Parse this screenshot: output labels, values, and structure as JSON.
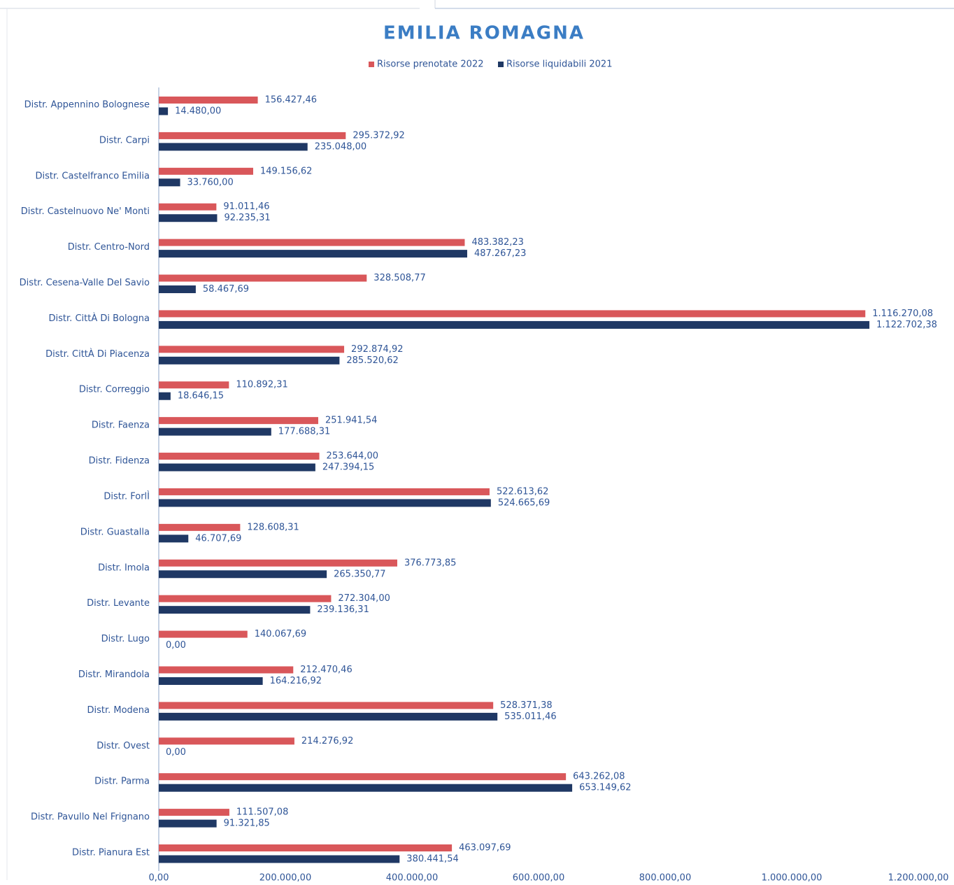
{
  "chart_data": {
    "type": "hbar",
    "title": "EMILIA ROMAGNA",
    "categories": [
      "Distr. Appennino Bolognese",
      "Distr. Carpi",
      "Distr. Castelfranco Emilia",
      "Distr. Castelnuovo Ne' Monti",
      "Distr. Centro-Nord",
      "Distr. Cesena-Valle Del Savio",
      "Distr. CittÀ Di Bologna",
      "Distr. CittÀ Di Piacenza",
      "Distr. Correggio",
      "Distr. Faenza",
      "Distr. Fidenza",
      "Distr. ForlÌ",
      "Distr. Guastalla",
      "Distr. Imola",
      "Distr. Levante",
      "Distr. Lugo",
      "Distr. Mirandola",
      "Distr. Modena",
      "Distr. Ovest",
      "Distr. Parma",
      "Distr. Pavullo Nel Frignano",
      "Distr. Pianura Est"
    ],
    "series": [
      {
        "name": "Risorse prenotate 2022",
        "color": "#d9575a",
        "values": [
          156427.46,
          295372.92,
          149156.62,
          91011.46,
          483382.23,
          328508.77,
          1116270.08,
          292874.92,
          110892.31,
          251941.54,
          253644.0,
          522613.62,
          128608.31,
          376773.85,
          272304.0,
          140067.69,
          212470.46,
          528371.38,
          214276.92,
          643262.08,
          111507.08,
          463097.69
        ],
        "value_labels": [
          "156.427,46",
          "295.372,92",
          "149.156,62",
          "91.011,46",
          "483.382,23",
          "328.508,77",
          "1.116.270,08",
          "292.874,92",
          "110.892,31",
          "251.941,54",
          "253.644,00",
          "522.613,62",
          "128.608,31",
          "376.773,85",
          "272.304,00",
          "140.067,69",
          "212.470,46",
          "528.371,38",
          "214.276,92",
          "643.262,08",
          "111.507,08",
          "463.097,69"
        ]
      },
      {
        "name": "Risorse liquidabili 2021",
        "color": "#1f3864",
        "values": [
          14480.0,
          235048.0,
          33760.0,
          92235.31,
          487267.23,
          58467.69,
          1122702.38,
          285520.62,
          18646.15,
          177688.31,
          247394.15,
          524665.69,
          46707.69,
          265350.77,
          239136.31,
          0,
          164216.92,
          535011.46,
          0,
          653149.62,
          91321.85,
          380441.54
        ],
        "value_labels": [
          "14.480,00",
          "235.048,00",
          "33.760,00",
          "92.235,31",
          "487.267,23",
          "58.467,69",
          "1.122.702,38",
          "285.520,62",
          "18.646,15",
          "177.688,31",
          "247.394,15",
          "524.665,69",
          "46.707,69",
          "265.350,77",
          "239.136,31",
          "0,00",
          "164.216,92",
          "535.011,46",
          "0,00",
          "653.149,62",
          "91.321,85",
          "380.441,54"
        ]
      }
    ],
    "xlim": [
      0,
      1200000
    ],
    "xticks": [
      {
        "value": 0,
        "label": "0,00"
      },
      {
        "value": 200000,
        "label": "200.000,00"
      },
      {
        "value": 400000,
        "label": "400.000,00"
      },
      {
        "value": 600000,
        "label": "600.000,00"
      },
      {
        "value": 800000,
        "label": "800.000,00"
      },
      {
        "value": 1000000,
        "label": "1.000.000,00"
      },
      {
        "value": 1200000,
        "label": "1.200.000,00"
      }
    ],
    "legend": "top"
  }
}
